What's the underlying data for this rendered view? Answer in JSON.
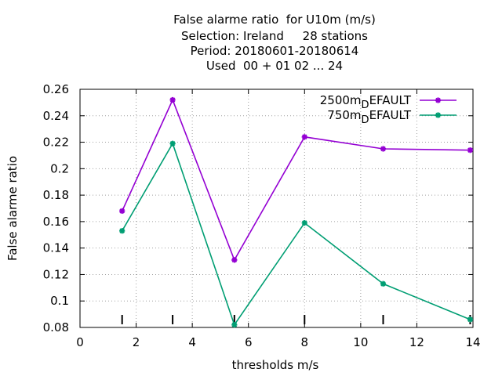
{
  "chart_data": {
    "type": "line",
    "title_lines": [
      "False alarme ratio  for U10m (m/s)",
      "Selection: Ireland     28 stations",
      "Period: 20180601-20180614",
      "Used  00 + 01 02 ... 24"
    ],
    "xlabel": "thresholds m/s",
    "ylabel": "False alarme ratio",
    "xlim": [
      0,
      14
    ],
    "ylim": [
      0.08,
      0.26
    ],
    "xticks": [
      0,
      2,
      4,
      6,
      8,
      10,
      12,
      14
    ],
    "yticks": [
      0.08,
      0.1,
      0.12,
      0.14,
      0.16,
      0.18,
      0.2,
      0.22,
      0.24,
      0.26
    ],
    "xtick_labels": [
      "0",
      "2",
      "4",
      "6",
      "8",
      "10",
      "12",
      "14"
    ],
    "ytick_labels": [
      "0.08",
      "0.1",
      "0.12",
      "0.14",
      "0.16",
      "0.18",
      "0.2",
      "0.22",
      "0.24",
      "0.26"
    ],
    "grid": true,
    "legend_position": "top-right",
    "threshold_markers": [
      1.5,
      3.3,
      5.5,
      8.0,
      10.8,
      13.9
    ],
    "series": [
      {
        "name_main": "2500m",
        "name_sub": "D",
        "name_rest": "EFAULT",
        "color": "#9400d3",
        "x": [
          1.5,
          3.3,
          5.5,
          8.0,
          10.8,
          13.9
        ],
        "y": [
          0.168,
          0.252,
          0.131,
          0.224,
          0.215,
          0.214
        ]
      },
      {
        "name_main": "750m",
        "name_sub": "D",
        "name_rest": "EFAULT",
        "color": "#009e73",
        "x": [
          1.5,
          3.3,
          5.5,
          8.0,
          10.8,
          13.9
        ],
        "y": [
          0.153,
          0.219,
          0.082,
          0.159,
          0.113,
          0.086
        ]
      }
    ]
  }
}
